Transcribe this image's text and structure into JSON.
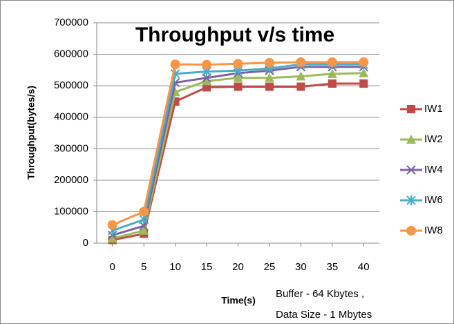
{
  "chart_data": {
    "type": "line",
    "title": "Throughput v/s time",
    "x_label": "Time(s)",
    "y_label": "Throughput(bytes/s)",
    "annotations": [
      "Buffer - 64 Kbytes ,",
      "Data Size - 1 Mbytes"
    ],
    "x": [
      0,
      5,
      10,
      15,
      20,
      25,
      30,
      35,
      40
    ],
    "xlim": [
      -2.5,
      42.5
    ],
    "xticks": [
      0,
      5,
      10,
      15,
      20,
      25,
      30,
      35,
      40
    ],
    "ylim": [
      0,
      700000
    ],
    "yticks": [
      0,
      100000,
      200000,
      300000,
      400000,
      500000,
      600000,
      700000
    ],
    "grid": true,
    "legend": "right",
    "series": [
      {
        "name": "IW1",
        "color": "#be4b48",
        "marker": "square",
        "values": [
          10000,
          30000,
          450000,
          495000,
          497000,
          497000,
          497000,
          507000,
          507000
        ]
      },
      {
        "name": "IW2",
        "color": "#9bbb59",
        "marker": "triangle",
        "values": [
          15000,
          40000,
          480000,
          515000,
          525000,
          525000,
          530000,
          538000,
          540000
        ]
      },
      {
        "name": "IW4",
        "color": "#7f63a1",
        "marker": "x",
        "values": [
          25000,
          55000,
          510000,
          525000,
          540000,
          548000,
          560000,
          560000,
          560000
        ]
      },
      {
        "name": "IW6",
        "color": "#4bacc6",
        "marker": "star",
        "values": [
          40000,
          75000,
          538000,
          545000,
          548000,
          555000,
          568000,
          568000,
          568000
        ]
      },
      {
        "name": "IW8",
        "color": "#f79646",
        "marker": "circle",
        "values": [
          58000,
          100000,
          568000,
          567000,
          570000,
          573000,
          575000,
          575000,
          575000
        ]
      }
    ]
  }
}
